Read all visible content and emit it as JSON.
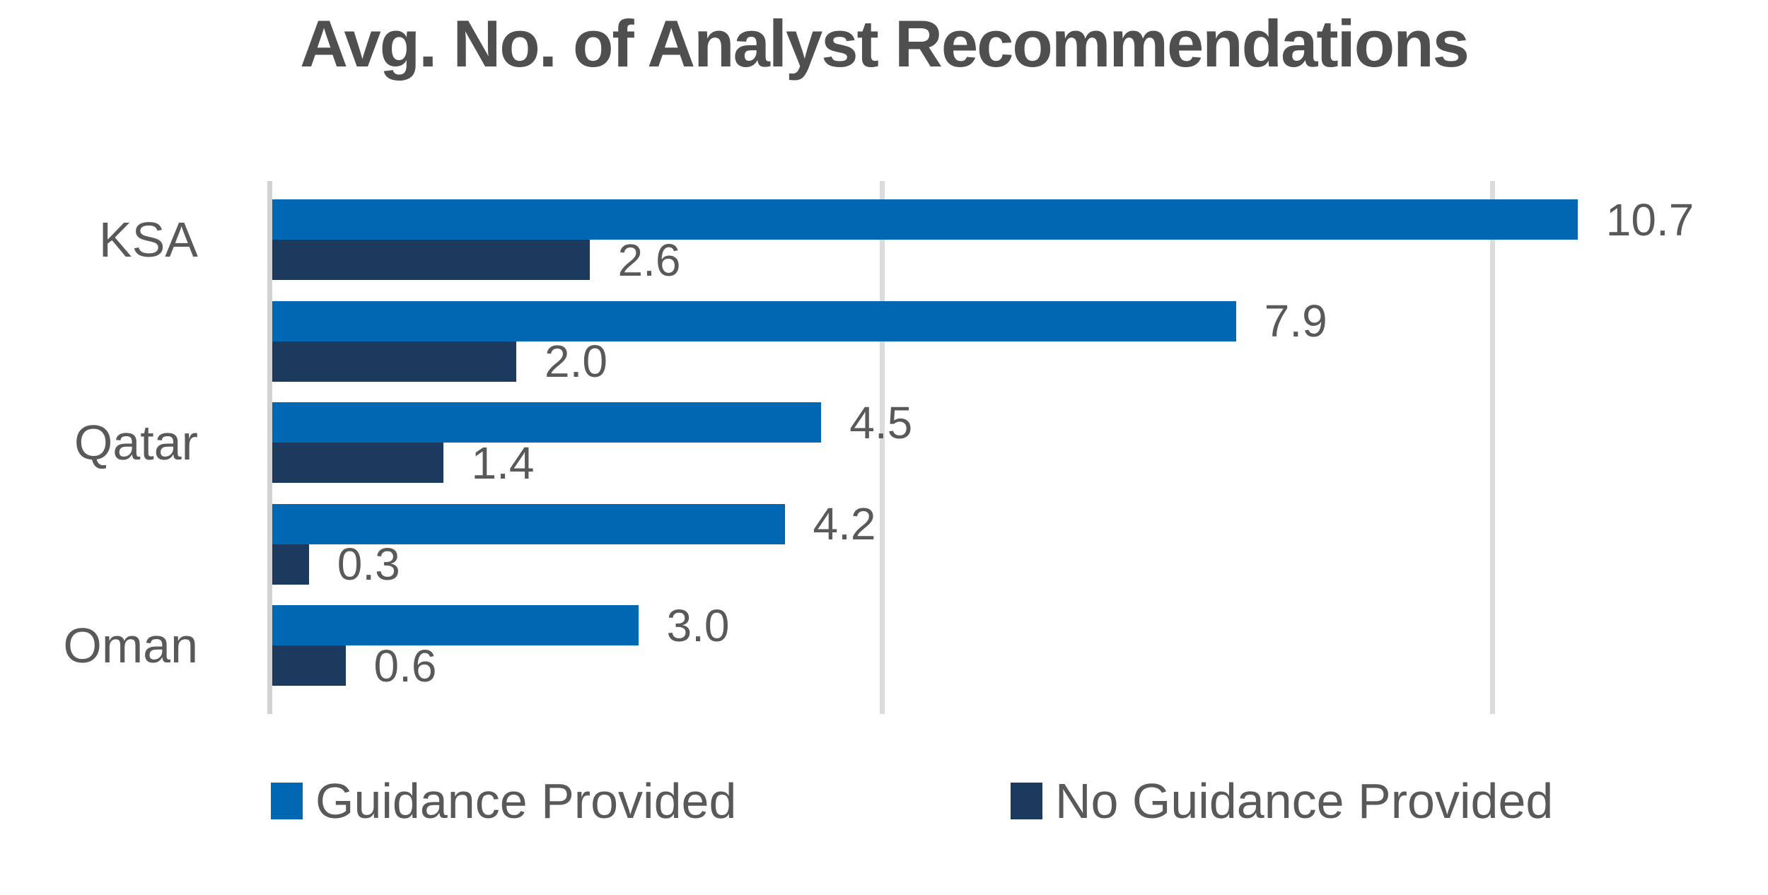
{
  "chart_data": {
    "type": "bar",
    "orientation": "horizontal",
    "title": "Avg. No. of Analyst Recommendations",
    "categories": [
      "KSA",
      "",
      "Qatar",
      "",
      "Oman"
    ],
    "series": [
      {
        "name": "Guidance Provided",
        "color": "#0068B3",
        "values": [
          10.7,
          7.9,
          4.5,
          4.2,
          3.0
        ],
        "labels": [
          "10.7",
          "7.9",
          "4.5",
          "4.2",
          "3.0"
        ]
      },
      {
        "name": "No Guidance Provided",
        "color": "#1C3A5E",
        "values": [
          2.6,
          2.0,
          1.4,
          0.3,
          0.6
        ],
        "labels": [
          "2.6",
          "2.0",
          "1.4",
          "0.3",
          "0.6"
        ]
      }
    ],
    "xlim": [
      0,
      12
    ],
    "gridlines_at": [
      5,
      10
    ],
    "grid": true,
    "value_labels_shown": true,
    "axis_tick_labels_shown": false,
    "legend_position": "bottom",
    "colors": {
      "title_text": "#4F4F4F",
      "label_text": "#595959",
      "gridline": "#DCDCDC",
      "axis_line": "#D2D2D2",
      "background": "#FFFFFF"
    }
  }
}
